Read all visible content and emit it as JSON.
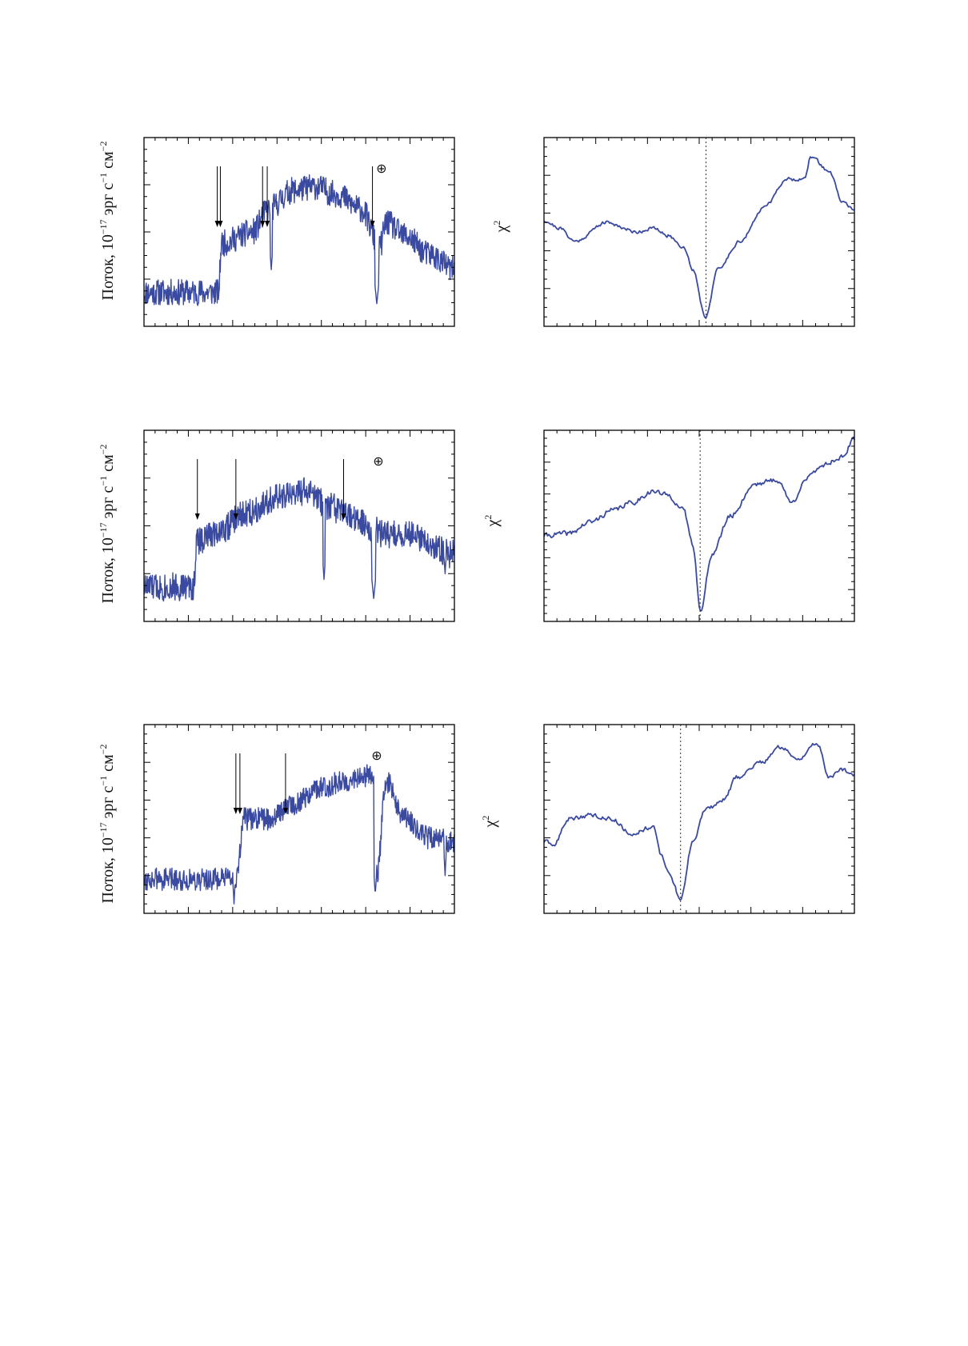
{
  "page": {
    "ylabel_flux_prefix": "Поток, 10",
    "ylabel_flux_exp": "−17",
    "ylabel_flux_mid1": " эрг с",
    "ylabel_flux_exp2": "−1",
    "ylabel_flux_mid2": " см",
    "ylabel_flux_exp3": "−2",
    "ylabel_chi_base": "χ",
    "ylabel_chi_exp": "2",
    "earth_symbol": "⊕"
  },
  "colors": {
    "line": "#3a4aa0",
    "axis": "#000000",
    "arrow": "#000000"
  },
  "chart_data": [
    {
      "type": "line",
      "role": "spectrum",
      "panel": "top-left",
      "xlim": [
        0,
        1
      ],
      "ylim": [
        0,
        1
      ],
      "shape": {
        "knots": [
          [
            0.0,
            0.18
          ],
          [
            0.24,
            0.18
          ],
          [
            0.25,
            0.44
          ],
          [
            0.35,
            0.5
          ],
          [
            0.4,
            0.62
          ],
          [
            0.48,
            0.72
          ],
          [
            0.55,
            0.74
          ],
          [
            0.62,
            0.7
          ],
          [
            0.7,
            0.62
          ],
          [
            0.76,
            0.42
          ],
          [
            0.78,
            0.55
          ],
          [
            0.84,
            0.48
          ],
          [
            0.92,
            0.38
          ],
          [
            1.0,
            0.3
          ]
        ],
        "noise": 0.07,
        "seed": 11,
        "dips": [
          [
            0.75,
            0.12,
            0.006
          ],
          [
            0.41,
            0.3,
            0.004
          ],
          [
            0.19,
            0.15,
            0.004
          ]
        ]
      },
      "arrows": [
        0.236,
        0.246,
        0.382,
        0.397,
        0.736
      ],
      "earth_x": 0.765
    },
    {
      "type": "line",
      "role": "chi2",
      "panel": "top-right",
      "xlim": [
        0,
        1
      ],
      "ylim": [
        0,
        1
      ],
      "shape": {
        "knots": [
          [
            0.0,
            0.56
          ],
          [
            0.05,
            0.52
          ],
          [
            0.1,
            0.45
          ],
          [
            0.2,
            0.55
          ],
          [
            0.3,
            0.5
          ],
          [
            0.35,
            0.52
          ],
          [
            0.4,
            0.48
          ],
          [
            0.45,
            0.42
          ],
          [
            0.48,
            0.3
          ],
          [
            0.52,
            0.05
          ],
          [
            0.56,
            0.3
          ],
          [
            0.63,
            0.45
          ],
          [
            0.72,
            0.65
          ],
          [
            0.78,
            0.78
          ],
          [
            0.84,
            0.78
          ],
          [
            0.86,
            0.9
          ],
          [
            0.92,
            0.82
          ],
          [
            0.96,
            0.66
          ],
          [
            1.0,
            0.62
          ]
        ],
        "noise": 0.008,
        "seed": 21,
        "dips": []
      },
      "vline_x": 0.522
    },
    {
      "type": "line",
      "role": "spectrum",
      "panel": "middle-left",
      "xlim": [
        0,
        1
      ],
      "ylim": [
        0,
        1
      ],
      "shape": {
        "knots": [
          [
            0.0,
            0.18
          ],
          [
            0.16,
            0.18
          ],
          [
            0.17,
            0.42
          ],
          [
            0.25,
            0.48
          ],
          [
            0.32,
            0.56
          ],
          [
            0.42,
            0.64
          ],
          [
            0.52,
            0.68
          ],
          [
            0.6,
            0.6
          ],
          [
            0.66,
            0.55
          ],
          [
            0.72,
            0.5
          ],
          [
            0.78,
            0.45
          ],
          [
            0.85,
            0.46
          ],
          [
            0.92,
            0.4
          ],
          [
            1.0,
            0.35
          ]
        ],
        "noise": 0.075,
        "seed": 33,
        "dips": [
          [
            0.74,
            0.12,
            0.006
          ],
          [
            0.58,
            0.22,
            0.004
          ],
          [
            0.97,
            0.25,
            0.004
          ]
        ]
      },
      "arrows": [
        0.172,
        0.296,
        0.643
      ],
      "earth_x": 0.755
    },
    {
      "type": "line",
      "role": "chi2",
      "panel": "middle-right",
      "xlim": [
        0,
        1
      ],
      "ylim": [
        0,
        1
      ],
      "shape": {
        "knots": [
          [
            0.0,
            0.45
          ],
          [
            0.08,
            0.46
          ],
          [
            0.15,
            0.52
          ],
          [
            0.22,
            0.58
          ],
          [
            0.28,
            0.62
          ],
          [
            0.35,
            0.68
          ],
          [
            0.4,
            0.66
          ],
          [
            0.45,
            0.58
          ],
          [
            0.48,
            0.4
          ],
          [
            0.505,
            0.05
          ],
          [
            0.54,
            0.35
          ],
          [
            0.6,
            0.55
          ],
          [
            0.68,
            0.72
          ],
          [
            0.75,
            0.74
          ],
          [
            0.8,
            0.62
          ],
          [
            0.84,
            0.74
          ],
          [
            0.9,
            0.82
          ],
          [
            0.96,
            0.86
          ],
          [
            1.0,
            0.95
          ]
        ],
        "noise": 0.012,
        "seed": 41,
        "dips": []
      },
      "vline_x": 0.503
    },
    {
      "type": "line",
      "role": "spectrum",
      "panel": "bottom-left",
      "xlim": [
        0,
        1
      ],
      "ylim": [
        0,
        1
      ],
      "shape": {
        "knots": [
          [
            0.0,
            0.18
          ],
          [
            0.3,
            0.18
          ],
          [
            0.32,
            0.5
          ],
          [
            0.4,
            0.5
          ],
          [
            0.48,
            0.58
          ],
          [
            0.56,
            0.66
          ],
          [
            0.64,
            0.7
          ],
          [
            0.7,
            0.72
          ],
          [
            0.74,
            0.74
          ],
          [
            0.75,
            0.2
          ],
          [
            0.78,
            0.7
          ],
          [
            0.84,
            0.5
          ],
          [
            0.92,
            0.4
          ],
          [
            1.0,
            0.38
          ]
        ],
        "noise": 0.06,
        "seed": 55,
        "dips": [
          [
            0.745,
            0.1,
            0.004
          ],
          [
            0.29,
            0.05,
            0.003
          ],
          [
            0.97,
            0.2,
            0.003
          ]
        ]
      },
      "arrows": [
        0.296,
        0.309,
        0.456
      ],
      "earth_x": 0.75
    },
    {
      "type": "line",
      "role": "chi2",
      "panel": "bottom-right",
      "xlim": [
        0,
        1
      ],
      "ylim": [
        0,
        1
      ],
      "shape": {
        "knots": [
          [
            0.0,
            0.38
          ],
          [
            0.03,
            0.36
          ],
          [
            0.08,
            0.5
          ],
          [
            0.15,
            0.52
          ],
          [
            0.22,
            0.5
          ],
          [
            0.28,
            0.42
          ],
          [
            0.35,
            0.46
          ],
          [
            0.38,
            0.3
          ],
          [
            0.4,
            0.22
          ],
          [
            0.44,
            0.08
          ],
          [
            0.48,
            0.38
          ],
          [
            0.52,
            0.55
          ],
          [
            0.58,
            0.6
          ],
          [
            0.62,
            0.72
          ],
          [
            0.7,
            0.8
          ],
          [
            0.76,
            0.88
          ],
          [
            0.82,
            0.82
          ],
          [
            0.88,
            0.9
          ],
          [
            0.92,
            0.72
          ],
          [
            0.96,
            0.76
          ],
          [
            1.0,
            0.74
          ]
        ],
        "noise": 0.01,
        "seed": 63,
        "dips": []
      },
      "vline_x": 0.44
    }
  ]
}
